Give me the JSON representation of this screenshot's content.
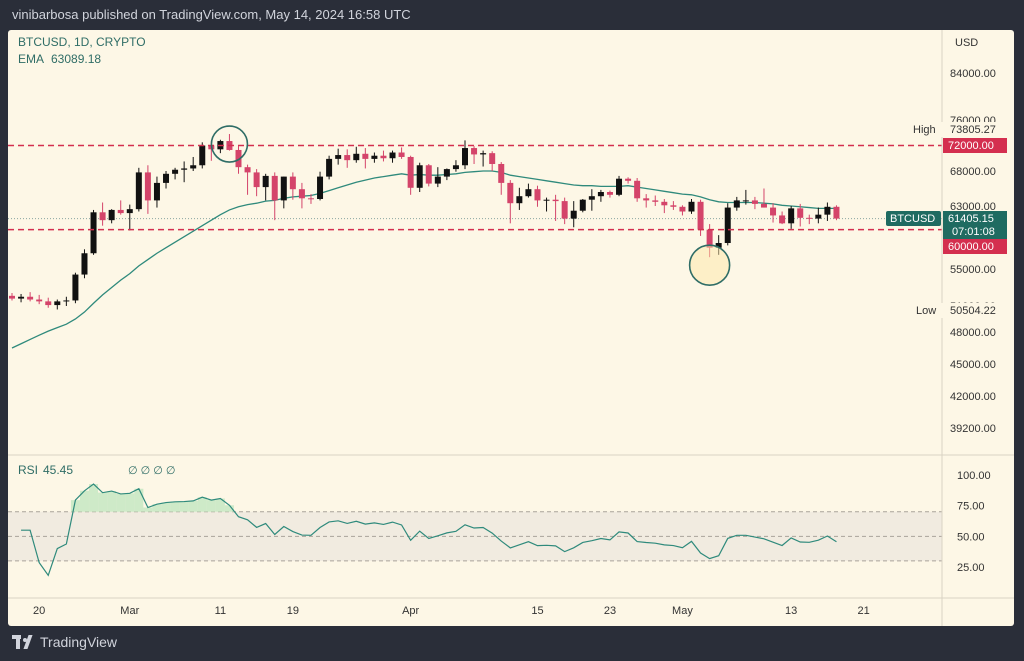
{
  "publish_info": "vinibarbosa published on TradingView.com, May 14, 2024 16:58 UTC",
  "brand": "TradingView",
  "currency": "USD",
  "symbol_line": "BTCUSD, 1D, CRYPTO",
  "ema_label": "EMA",
  "ema_value": "63089.18",
  "rsi_label": "RSI",
  "rsi_value": "45.45",
  "rsi_extra": "∅ ∅ ∅ ∅",
  "high_label": "High",
  "high_value": "73805.27",
  "low_label": "Low",
  "low_value": "50504.22",
  "price_tag_symbol": "BTCUSD",
  "price_tag_value": "61405.15",
  "price_tag_countdown": "07:01:08",
  "level_upper": "72000.00",
  "level_lower": "60000.00",
  "colors": {
    "up": "#111111",
    "down": "#d4446a",
    "ema": "#2f8a7c",
    "level": "#d42f4f",
    "rsi": "#2f8a7c"
  },
  "chart_data": {
    "type": "candlestick",
    "price_ticks": [
      "84000.00",
      "76000.00",
      "68000.00",
      "63000.00",
      "55000.00",
      "51000.00",
      "48000.00",
      "45000.00",
      "42000.00",
      "39200.00"
    ],
    "price_tick_values": [
      84000,
      76000,
      68000,
      63000,
      55000,
      51000,
      48000,
      45000,
      42000,
      39200
    ],
    "x_ticks": [
      "20",
      "Mar",
      "11",
      "19",
      "Apr",
      "15",
      "23",
      "May",
      "13",
      "21"
    ],
    "rsi_ticks": [
      "100.00",
      "75.00",
      "50.00",
      "25.00"
    ],
    "rsi_tick_values": [
      100,
      75,
      50,
      25
    ],
    "rsi_bands": [
      70,
      50,
      30
    ],
    "horizontal_levels": [
      72000,
      60000
    ],
    "x_start": "2024-02-17",
    "ohlc": [
      [
        52100,
        52400,
        51600,
        51800
      ],
      [
        51800,
        52300,
        51400,
        52000
      ],
      [
        52000,
        52500,
        51500,
        51700
      ],
      [
        51700,
        52200,
        51200,
        51500
      ],
      [
        51500,
        51900,
        50800,
        51100
      ],
      [
        51100,
        51700,
        50600,
        51500
      ],
      [
        51500,
        52000,
        51000,
        51600
      ],
      [
        51600,
        54600,
        51300,
        54400
      ],
      [
        54400,
        57500,
        54000,
        57000
      ],
      [
        57000,
        62500,
        56800,
        62200
      ],
      [
        62200,
        63500,
        60500,
        61200
      ],
      [
        61200,
        62600,
        60800,
        62500
      ],
      [
        62500,
        63800,
        61900,
        62100
      ],
      [
        62100,
        63200,
        59900,
        62600
      ],
      [
        62600,
        68500,
        62300,
        67800
      ],
      [
        67800,
        68900,
        62000,
        63800
      ],
      [
        63800,
        67200,
        62800,
        66300
      ],
      [
        66300,
        68000,
        65500,
        67600
      ],
      [
        67600,
        68500,
        66800,
        68200
      ],
      [
        68200,
        69500,
        66400,
        68400
      ],
      [
        68400,
        70200,
        68000,
        68900
      ],
      [
        68900,
        72500,
        68400,
        72000
      ],
      [
        72000,
        72700,
        69600,
        71400
      ],
      [
        71400,
        72900,
        70800,
        72700
      ],
      [
        72700,
        73800,
        71200,
        71300
      ],
      [
        71300,
        71900,
        67600,
        68600
      ],
      [
        68600,
        69000,
        64600,
        67800
      ],
      [
        67800,
        68300,
        64400,
        65700
      ],
      [
        65700,
        67600,
        63800,
        67300
      ],
      [
        67300,
        67800,
        61200,
        63800
      ],
      [
        63800,
        67200,
        62700,
        67200
      ],
      [
        67200,
        67800,
        63900,
        65400
      ],
      [
        65400,
        66300,
        62700,
        64100
      ],
      [
        64100,
        64700,
        63300,
        64000
      ],
      [
        64000,
        67900,
        63800,
        67200
      ],
      [
        67200,
        70400,
        66800,
        69900
      ],
      [
        69900,
        71500,
        69000,
        70500
      ],
      [
        70500,
        71400,
        68500,
        69700
      ],
      [
        69700,
        71800,
        69300,
        70700
      ],
      [
        70700,
        71600,
        68400,
        69900
      ],
      [
        69900,
        70900,
        69300,
        70400
      ],
      [
        70400,
        71200,
        69500,
        70000
      ],
      [
        70000,
        71200,
        69300,
        70900
      ],
      [
        70900,
        71700,
        69900,
        70200
      ],
      [
        70200,
        70400,
        64600,
        65600
      ],
      [
        65600,
        69300,
        65000,
        68900
      ],
      [
        68900,
        69100,
        65800,
        66200
      ],
      [
        66200,
        68600,
        65700,
        67200
      ],
      [
        67200,
        68400,
        66700,
        68300
      ],
      [
        68300,
        69700,
        67900,
        68900
      ],
      [
        68900,
        72800,
        68300,
        71600
      ],
      [
        71600,
        71900,
        69100,
        70600
      ],
      [
        70600,
        71200,
        68700,
        70800
      ],
      [
        70800,
        71100,
        68000,
        69100
      ],
      [
        69100,
        69400,
        64600,
        66300
      ],
      [
        66300,
        66700,
        60800,
        63400
      ],
      [
        63400,
        65600,
        62500,
        64400
      ],
      [
        64400,
        66200,
        64200,
        65400
      ],
      [
        65400,
        65900,
        62900,
        63800
      ],
      [
        63800,
        64200,
        62300,
        63900
      ],
      [
        63900,
        64600,
        61100,
        63700
      ],
      [
        63700,
        64200,
        60700,
        61400
      ],
      [
        61400,
        63700,
        60300,
        62400
      ],
      [
        62400,
        64000,
        62200,
        63900
      ],
      [
        63900,
        65400,
        62400,
        64400
      ],
      [
        64400,
        65300,
        63600,
        65000
      ],
      [
        65000,
        65200,
        64200,
        64600
      ],
      [
        64600,
        67300,
        64400,
        66900
      ],
      [
        66900,
        67100,
        66200,
        66600
      ],
      [
        66600,
        67000,
        63600,
        64100
      ],
      [
        64100,
        64700,
        62800,
        63800
      ],
      [
        63800,
        64500,
        63000,
        63600
      ],
      [
        63600,
        64000,
        62100,
        63100
      ],
      [
        63100,
        63700,
        62500,
        62900
      ],
      [
        62900,
        63100,
        61800,
        62300
      ],
      [
        62300,
        64000,
        62000,
        63600
      ],
      [
        63600,
        63900,
        59200,
        60000
      ],
      [
        60000,
        60700,
        56500,
        57700
      ],
      [
        57700,
        59300,
        56800,
        58300
      ],
      [
        58300,
        63400,
        58000,
        62800
      ],
      [
        62800,
        64300,
        62400,
        63800
      ],
      [
        63800,
        65300,
        63200,
        63800
      ],
      [
        63800,
        64300,
        62600,
        63300
      ],
      [
        63300,
        65500,
        62800,
        62800
      ],
      [
        62800,
        63400,
        60900,
        61800
      ],
      [
        61800,
        62300,
        60700,
        60800
      ],
      [
        60800,
        63000,
        60100,
        62700
      ],
      [
        62700,
        63300,
        60400,
        61500
      ],
      [
        61500,
        61900,
        60700,
        61400
      ],
      [
        61400,
        62800,
        60800,
        61900
      ],
      [
        61900,
        63500,
        61100,
        62900
      ],
      [
        62900,
        63100,
        61200,
        61400
      ]
    ],
    "ema": [
      46500,
      46900,
      47300,
      47700,
      48100,
      48500,
      48900,
      49500,
      50300,
      51300,
      52200,
      53000,
      53800,
      54500,
      55400,
      56200,
      57000,
      57700,
      58400,
      59100,
      59800,
      60500,
      61200,
      61900,
      62500,
      62900,
      63200,
      63400,
      63700,
      63800,
      64100,
      64300,
      64400,
      64500,
      64800,
      65200,
      65600,
      66000,
      66400,
      66700,
      67000,
      67200,
      67400,
      67600,
      67400,
      67500,
      67400,
      67400,
      67500,
      67600,
      67800,
      67900,
      68000,
      68000,
      67800,
      67400,
      67200,
      67000,
      66800,
      66600,
      66400,
      66200,
      66000,
      65900,
      65900,
      65800,
      65800,
      65800,
      65900,
      65700,
      65500,
      65300,
      65100,
      64900,
      64700,
      64600,
      64300,
      63900,
      63600,
      63500,
      63500,
      63500,
      63500,
      63400,
      63300,
      63100,
      63000,
      62900,
      62800,
      62700,
      62700,
      62700
    ]
  }
}
